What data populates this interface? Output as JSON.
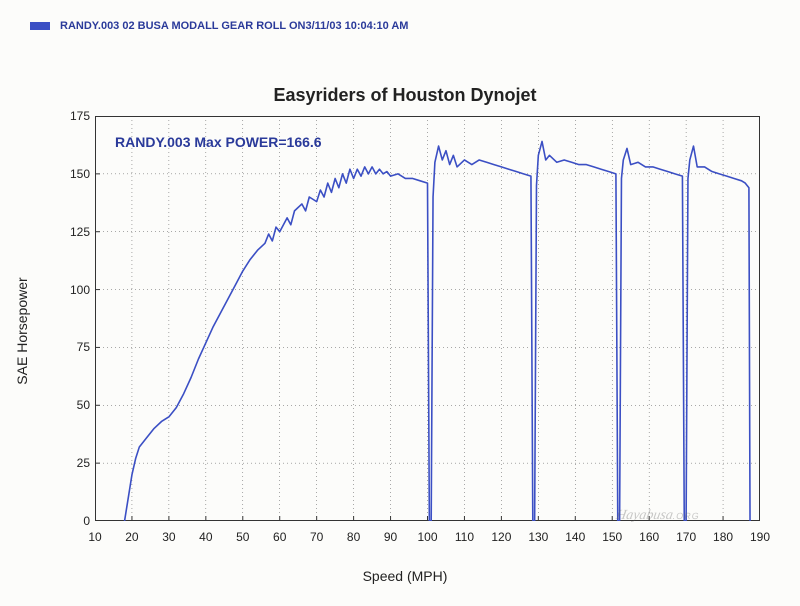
{
  "header": {
    "swatch_color": "#3b4fc4",
    "text": "RANDY.003   02 BUSA MODALL GEAR ROLL ON3/11/03 10:04:10 AM"
  },
  "chart": {
    "type": "line",
    "title": "Easyriders of Houston Dynojet",
    "annotation": "RANDY.003   Max POWER=166.6",
    "x_label": "Speed (MPH)",
    "y_label": "SAE Horsepower",
    "xlim": [
      10,
      190
    ],
    "ylim": [
      0,
      175
    ],
    "xtick_step": 10,
    "ytick_step": 25,
    "line_color": "#3b4fc4",
    "line_width": 1.6,
    "grid_color": "#555555",
    "grid_dash": "1,3",
    "border_color": "#333333",
    "background_color": "#fcfcfa",
    "axis_fontsize": 14,
    "tick_fontsize": 12,
    "title_fontsize": 18,
    "series": [
      {
        "x": 18,
        "y": 0
      },
      {
        "x": 19,
        "y": 10
      },
      {
        "x": 20,
        "y": 20
      },
      {
        "x": 21,
        "y": 27
      },
      {
        "x": 22,
        "y": 32
      },
      {
        "x": 24,
        "y": 36
      },
      {
        "x": 26,
        "y": 40
      },
      {
        "x": 28,
        "y": 43
      },
      {
        "x": 30,
        "y": 45
      },
      {
        "x": 32,
        "y": 49
      },
      {
        "x": 34,
        "y": 55
      },
      {
        "x": 36,
        "y": 62
      },
      {
        "x": 38,
        "y": 70
      },
      {
        "x": 40,
        "y": 77
      },
      {
        "x": 42,
        "y": 84
      },
      {
        "x": 44,
        "y": 90
      },
      {
        "x": 46,
        "y": 96
      },
      {
        "x": 48,
        "y": 102
      },
      {
        "x": 50,
        "y": 108
      },
      {
        "x": 52,
        "y": 113
      },
      {
        "x": 54,
        "y": 117
      },
      {
        "x": 56,
        "y": 120
      },
      {
        "x": 57,
        "y": 124
      },
      {
        "x": 58,
        "y": 121
      },
      {
        "x": 59,
        "y": 127
      },
      {
        "x": 60,
        "y": 125
      },
      {
        "x": 62,
        "y": 131
      },
      {
        "x": 63,
        "y": 128
      },
      {
        "x": 64,
        "y": 134
      },
      {
        "x": 66,
        "y": 137
      },
      {
        "x": 67,
        "y": 134
      },
      {
        "x": 68,
        "y": 140
      },
      {
        "x": 70,
        "y": 138
      },
      {
        "x": 71,
        "y": 143
      },
      {
        "x": 72,
        "y": 140
      },
      {
        "x": 73,
        "y": 146
      },
      {
        "x": 74,
        "y": 142
      },
      {
        "x": 75,
        "y": 148
      },
      {
        "x": 76,
        "y": 144
      },
      {
        "x": 77,
        "y": 150
      },
      {
        "x": 78,
        "y": 146
      },
      {
        "x": 79,
        "y": 152
      },
      {
        "x": 80,
        "y": 148
      },
      {
        "x": 81,
        "y": 152
      },
      {
        "x": 82,
        "y": 149
      },
      {
        "x": 83,
        "y": 153
      },
      {
        "x": 84,
        "y": 150
      },
      {
        "x": 85,
        "y": 153
      },
      {
        "x": 86,
        "y": 150
      },
      {
        "x": 87,
        "y": 152
      },
      {
        "x": 88,
        "y": 150
      },
      {
        "x": 89,
        "y": 151
      },
      {
        "x": 90,
        "y": 149
      },
      {
        "x": 92,
        "y": 150
      },
      {
        "x": 94,
        "y": 148
      },
      {
        "x": 96,
        "y": 148
      },
      {
        "x": 98,
        "y": 147
      },
      {
        "x": 100,
        "y": 146
      },
      {
        "x": 100.5,
        "y": 0
      },
      {
        "x": 101,
        "y": 0
      },
      {
        "x": 101.5,
        "y": 140
      },
      {
        "x": 102,
        "y": 155
      },
      {
        "x": 103,
        "y": 162
      },
      {
        "x": 104,
        "y": 156
      },
      {
        "x": 105,
        "y": 160
      },
      {
        "x": 106,
        "y": 154
      },
      {
        "x": 107,
        "y": 158
      },
      {
        "x": 108,
        "y": 153
      },
      {
        "x": 110,
        "y": 156
      },
      {
        "x": 112,
        "y": 154
      },
      {
        "x": 114,
        "y": 156
      },
      {
        "x": 116,
        "y": 155
      },
      {
        "x": 118,
        "y": 154
      },
      {
        "x": 120,
        "y": 153
      },
      {
        "x": 122,
        "y": 152
      },
      {
        "x": 124,
        "y": 151
      },
      {
        "x": 126,
        "y": 150
      },
      {
        "x": 128,
        "y": 149
      },
      {
        "x": 128.5,
        "y": 0
      },
      {
        "x": 129,
        "y": 0
      },
      {
        "x": 129.5,
        "y": 145
      },
      {
        "x": 130,
        "y": 158
      },
      {
        "x": 131,
        "y": 164
      },
      {
        "x": 132,
        "y": 156
      },
      {
        "x": 133,
        "y": 158
      },
      {
        "x": 135,
        "y": 155
      },
      {
        "x": 137,
        "y": 156
      },
      {
        "x": 139,
        "y": 155
      },
      {
        "x": 141,
        "y": 154
      },
      {
        "x": 143,
        "y": 154
      },
      {
        "x": 145,
        "y": 153
      },
      {
        "x": 147,
        "y": 152
      },
      {
        "x": 149,
        "y": 151
      },
      {
        "x": 151,
        "y": 150
      },
      {
        "x": 151.5,
        "y": 0
      },
      {
        "x": 152,
        "y": 0
      },
      {
        "x": 152.5,
        "y": 148
      },
      {
        "x": 153,
        "y": 156
      },
      {
        "x": 154,
        "y": 161
      },
      {
        "x": 155,
        "y": 154
      },
      {
        "x": 157,
        "y": 155
      },
      {
        "x": 159,
        "y": 153
      },
      {
        "x": 161,
        "y": 153
      },
      {
        "x": 163,
        "y": 152
      },
      {
        "x": 165,
        "y": 151
      },
      {
        "x": 167,
        "y": 150
      },
      {
        "x": 169,
        "y": 149
      },
      {
        "x": 169.5,
        "y": 0
      },
      {
        "x": 170,
        "y": 0
      },
      {
        "x": 170.5,
        "y": 148
      },
      {
        "x": 171,
        "y": 156
      },
      {
        "x": 172,
        "y": 162
      },
      {
        "x": 173,
        "y": 153
      },
      {
        "x": 175,
        "y": 153
      },
      {
        "x": 177,
        "y": 151
      },
      {
        "x": 179,
        "y": 150
      },
      {
        "x": 181,
        "y": 149
      },
      {
        "x": 183,
        "y": 148
      },
      {
        "x": 185,
        "y": 147
      },
      {
        "x": 186,
        "y": 146
      },
      {
        "x": 187,
        "y": 144
      },
      {
        "x": 187.3,
        "y": 0
      }
    ]
  },
  "watermark": {
    "text": "Hayabusa",
    "suffix": ".ORG",
    "color": "rgba(100,100,100,0.35)"
  }
}
